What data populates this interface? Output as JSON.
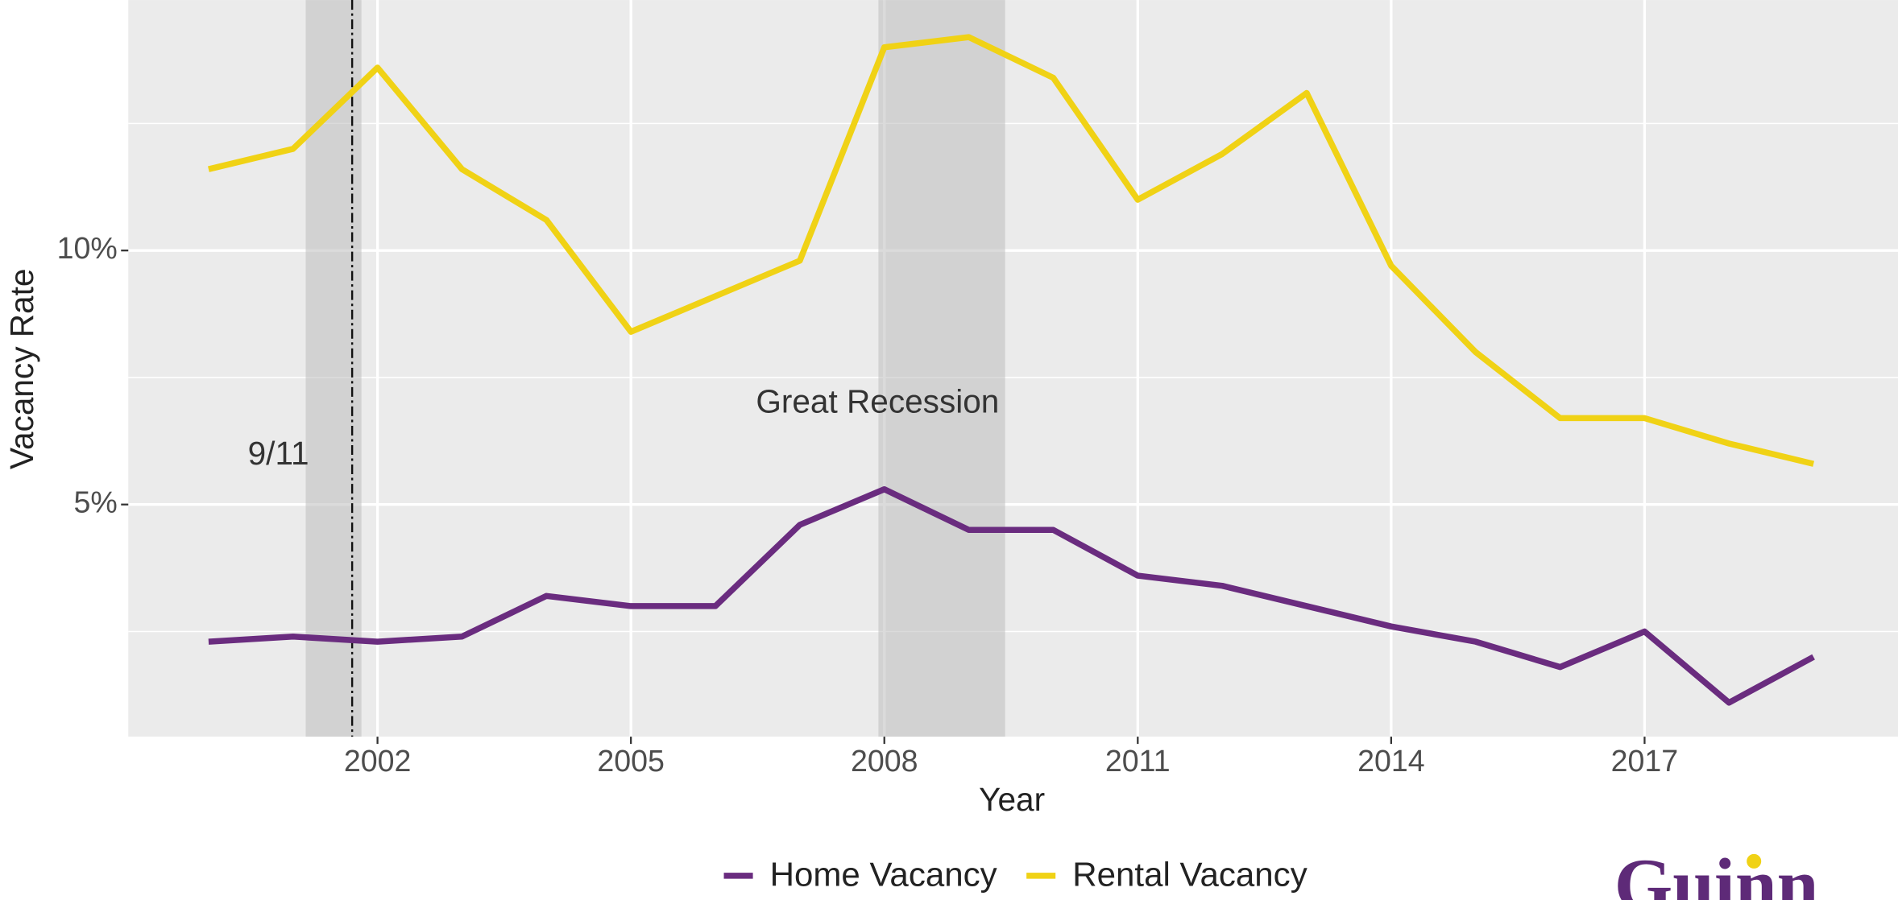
{
  "chart_data": {
    "type": "line",
    "x_label": "Year",
    "y_label": "Vacancy Rate",
    "x": [
      2000,
      2001,
      2002,
      2003,
      2004,
      2005,
      2006,
      2007,
      2008,
      2009,
      2010,
      2011,
      2012,
      2013,
      2014,
      2015,
      2016,
      2017,
      2018,
      2019
    ],
    "series": [
      {
        "name": "Home Vacancy",
        "color": "#6a2c7f",
        "values": [
          2.3,
          2.4,
          2.3,
          2.4,
          3.2,
          3.0,
          3.0,
          4.6,
          5.3,
          4.5,
          4.5,
          3.6,
          3.4,
          3.0,
          2.6,
          2.3,
          1.8,
          2.5,
          1.1,
          2.0
        ]
      },
      {
        "name": "Rental Vacancy",
        "color": "#f0d215",
        "values": [
          11.6,
          12.0,
          13.6,
          11.6,
          10.6,
          8.4,
          9.1,
          9.8,
          14.0,
          14.2,
          13.4,
          11.0,
          11.9,
          13.1,
          9.7,
          8.0,
          6.7,
          6.7,
          6.2,
          5.8
        ]
      }
    ],
    "xlim": [
      1999.05,
      2020.0
    ],
    "ylim": [
      0.43,
      14.93
    ],
    "xticks": [
      2002,
      2005,
      2008,
      2011,
      2014,
      2017
    ],
    "yticks": [
      {
        "value": 5,
        "label": "5%"
      },
      {
        "value": 10,
        "label": "10%"
      }
    ],
    "yminor": [
      2.5,
      7.5,
      12.5
    ],
    "grid": true,
    "legend": "bottom",
    "recessions": [
      {
        "start": 2001.15,
        "end": 2001.81
      },
      {
        "start": 2007.93,
        "end": 2009.43
      }
    ],
    "events": [
      2001.7
    ],
    "annotations": [
      {
        "text": "9/11"
      },
      {
        "text": "Great Recession"
      }
    ],
    "logo": "Guinn"
  }
}
